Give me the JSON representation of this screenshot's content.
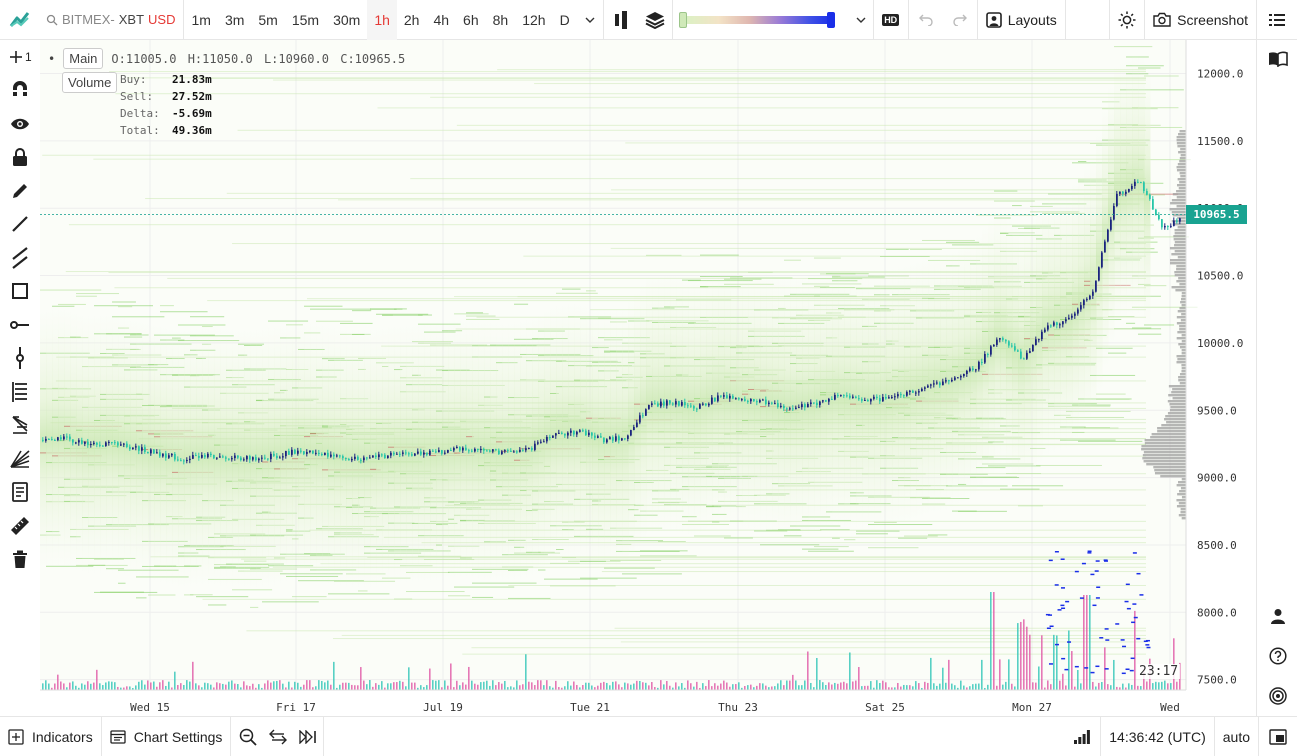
{
  "topbar": {
    "symbol_prefix": "BITMEX-",
    "symbol_base": "XBT",
    "symbol_quote": "USD",
    "intervals": [
      "1m",
      "3m",
      "5m",
      "15m",
      "30m",
      "1h",
      "2h",
      "4h",
      "6h",
      "8h",
      "12h",
      "D"
    ],
    "active_interval": "1h",
    "hd_label": "HD",
    "layouts_label": "Layouts",
    "screenshot_label": "Screenshot"
  },
  "lefttoolbar": {
    "crosshair_count": "1"
  },
  "legend": {
    "main_label": "Main",
    "volume_label": "Volume",
    "ohlc": {
      "o": "O:11005.0",
      "h": "H:11050.0",
      "l": "L:10960.0",
      "c": "C:10965.5"
    },
    "volume_rows": [
      {
        "key": "Buy:",
        "value": "21.83m"
      },
      {
        "key": "Sell:",
        "value": "27.52m"
      },
      {
        "key": "Delta:",
        "value": "-5.69m"
      },
      {
        "key": "Total:",
        "value": "49.36m"
      }
    ]
  },
  "chart": {
    "last_price": "10965.5",
    "countdown": "23:17",
    "price_axis_labels": [
      "12000.0",
      "11500.0",
      "11000.0",
      "10500.0",
      "10000.0",
      "9500.0",
      "9000.0",
      "8500.0",
      "8000.0",
      "7500.0"
    ],
    "time_axis_labels": [
      "Wed 15",
      "Fri 17",
      "Jul 19",
      "Tue 21",
      "Thu 23",
      "Sat 25",
      "Mon 27",
      "Wed"
    ]
  },
  "chart_data": {
    "type": "candlestick",
    "y_axis_range": [
      7400,
      12300
    ],
    "series_close": [
      9280,
      9300,
      9240,
      9260,
      9220,
      9180,
      9140,
      9160,
      9150,
      9140,
      9160,
      9200,
      9180,
      9150,
      9140,
      9170,
      9180,
      9190,
      9220,
      9200,
      9190,
      9220,
      9320,
      9340,
      9280,
      9300,
      9540,
      9560,
      9520,
      9600,
      9580,
      9560,
      9520,
      9540,
      9600,
      9580,
      9580,
      9620,
      9680,
      9720,
      9820,
      10040,
      9880,
      10120,
      10180,
      10400,
      11100,
      11200,
      10840,
      10980
    ]
  },
  "bottombar": {
    "indicators_label": "Indicators",
    "chart_settings_label": "Chart Settings",
    "time": "14:36:42 (UTC)",
    "auto_label": "auto"
  }
}
